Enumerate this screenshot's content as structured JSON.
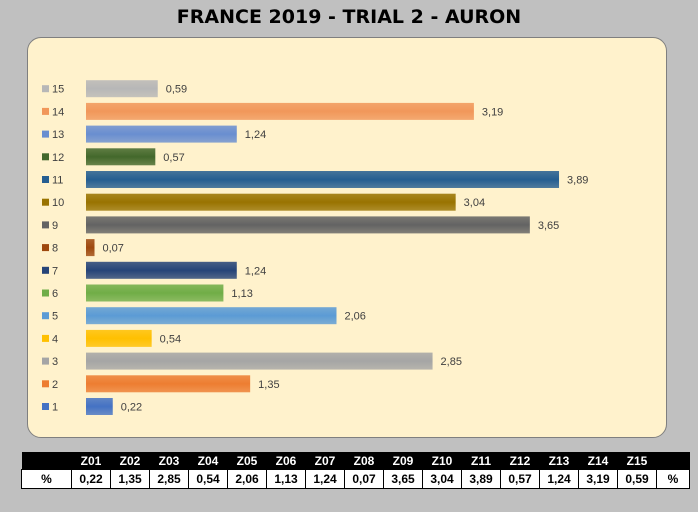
{
  "title": "FRANCE 2019 - TRIAL 2 - AURON",
  "chart_data": {
    "type": "bar",
    "orientation": "horizontal",
    "categories": [
      "1",
      "2",
      "3",
      "4",
      "5",
      "6",
      "7",
      "8",
      "9",
      "10",
      "11",
      "12",
      "13",
      "14",
      "15"
    ],
    "values": [
      0.22,
      1.35,
      2.85,
      0.54,
      2.06,
      1.13,
      1.24,
      0.07,
      3.65,
      3.04,
      3.89,
      0.57,
      1.24,
      3.19,
      0.59
    ],
    "value_labels": [
      "0,22",
      "1,35",
      "2,85",
      "0,54",
      "2,06",
      "1,13",
      "1,24",
      "0,07",
      "3,65",
      "3,04",
      "3,89",
      "0,57",
      "1,24",
      "3,19",
      "0,59"
    ],
    "colors": [
      "#4472c4",
      "#ed7d31",
      "#a5a5a5",
      "#ffc000",
      "#5b9bd5",
      "#70ad47",
      "#264478",
      "#9e480e",
      "#636363",
      "#997300",
      "#255e91",
      "#43682b",
      "#698ed0",
      "#f1975a",
      "#b7b7b7"
    ],
    "legend_position": "left",
    "grid": false,
    "xlim": [
      0,
      4
    ]
  },
  "table": {
    "row_label": "%",
    "row_suffix": "%",
    "headers": [
      "Z01",
      "Z02",
      "Z03",
      "Z04",
      "Z05",
      "Z06",
      "Z07",
      "Z08",
      "Z09",
      "Z10",
      "Z11",
      "Z12",
      "Z13",
      "Z14",
      "Z15"
    ],
    "values": [
      "0,22",
      "1,35",
      "2,85",
      "0,54",
      "2,06",
      "1,13",
      "1,24",
      "0,07",
      "3,65",
      "3,04",
      "3,89",
      "0,57",
      "1,24",
      "3,19",
      "0,59"
    ]
  }
}
